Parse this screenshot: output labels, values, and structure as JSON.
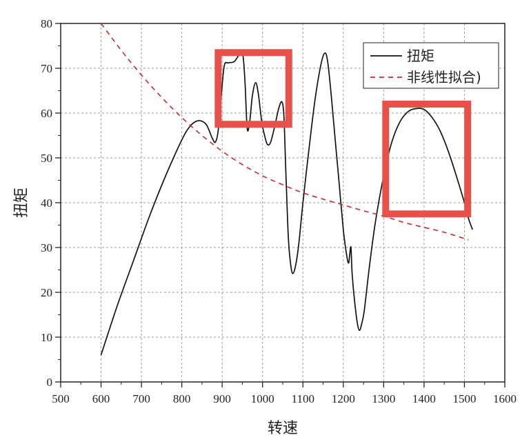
{
  "chart_data": {
    "type": "line",
    "xlabel": "转速",
    "ylabel": "扭矩",
    "xlim": [
      500,
      1600
    ],
    "ylim": [
      0,
      80
    ],
    "xticks": [
      500,
      600,
      700,
      800,
      900,
      1000,
      1100,
      1200,
      1300,
      1400,
      1500,
      1600
    ],
    "yticks": [
      0,
      10,
      20,
      30,
      40,
      50,
      60,
      70,
      80
    ],
    "grid": true,
    "legend_position": "top-right",
    "series": [
      {
        "name": "扭矩",
        "style": "solid",
        "color": "#111111",
        "points": [
          [
            600,
            6
          ],
          [
            640,
            17
          ],
          [
            680,
            27
          ],
          [
            720,
            37
          ],
          [
            760,
            46
          ],
          [
            800,
            54
          ],
          [
            820,
            57
          ],
          [
            840,
            58.3
          ],
          [
            860,
            57.5
          ],
          [
            875,
            54.5
          ],
          [
            883,
            53.5
          ],
          [
            890,
            56
          ],
          [
            897,
            63
          ],
          [
            905,
            70.5
          ],
          [
            915,
            71.2
          ],
          [
            930,
            71.5
          ],
          [
            945,
            73.3
          ],
          [
            952,
            72.5
          ],
          [
            957,
            66
          ],
          [
            962,
            56.5
          ],
          [
            968,
            58
          ],
          [
            975,
            64
          ],
          [
            983,
            66.8
          ],
          [
            990,
            64
          ],
          [
            998,
            58
          ],
          [
            1005,
            55
          ],
          [
            1012,
            53
          ],
          [
            1020,
            53.5
          ],
          [
            1030,
            57
          ],
          [
            1040,
            61
          ],
          [
            1048,
            62.5
          ],
          [
            1053,
            59
          ],
          [
            1058,
            46
          ],
          [
            1064,
            32
          ],
          [
            1070,
            26
          ],
          [
            1075,
            24.2
          ],
          [
            1082,
            26
          ],
          [
            1090,
            31
          ],
          [
            1100,
            40
          ],
          [
            1115,
            52
          ],
          [
            1130,
            63
          ],
          [
            1145,
            71
          ],
          [
            1155,
            73.4
          ],
          [
            1162,
            71
          ],
          [
            1170,
            64
          ],
          [
            1180,
            54
          ],
          [
            1190,
            44
          ],
          [
            1200,
            34
          ],
          [
            1208,
            28.5
          ],
          [
            1213,
            26.5
          ],
          [
            1216,
            28.5
          ],
          [
            1219,
            30
          ],
          [
            1222,
            24
          ],
          [
            1228,
            18
          ],
          [
            1235,
            13
          ],
          [
            1240,
            11.5
          ],
          [
            1245,
            12.8
          ],
          [
            1252,
            16
          ],
          [
            1265,
            26
          ],
          [
            1280,
            36
          ],
          [
            1300,
            46
          ],
          [
            1320,
            53.5
          ],
          [
            1340,
            58
          ],
          [
            1360,
            60.3
          ],
          [
            1380,
            61
          ],
          [
            1400,
            60.8
          ],
          [
            1420,
            59
          ],
          [
            1440,
            56
          ],
          [
            1460,
            51.5
          ],
          [
            1480,
            46
          ],
          [
            1500,
            40
          ],
          [
            1510,
            36.5
          ],
          [
            1520,
            34
          ]
        ]
      },
      {
        "name": "非线性拟合)",
        "style": "dashed",
        "color": "#c8282c",
        "points": [
          [
            600,
            80
          ],
          [
            650,
            74
          ],
          [
            700,
            68.5
          ],
          [
            750,
            63.5
          ],
          [
            800,
            59
          ],
          [
            850,
            55
          ],
          [
            900,
            51.5
          ],
          [
            950,
            48.5
          ],
          [
            1000,
            46
          ],
          [
            1050,
            44
          ],
          [
            1100,
            42.2
          ],
          [
            1150,
            40.8
          ],
          [
            1200,
            39.5
          ],
          [
            1250,
            38.2
          ],
          [
            1300,
            37
          ],
          [
            1350,
            35.6
          ],
          [
            1400,
            34.5
          ],
          [
            1450,
            33.4
          ],
          [
            1500,
            32
          ],
          [
            1510,
            31.7
          ]
        ]
      }
    ],
    "highlight_boxes": [
      {
        "x": [
          890,
          1065
        ],
        "y": [
          57.5,
          73.5
        ],
        "color": "#e8504a"
      },
      {
        "x": [
          1305,
          1508
        ],
        "y": [
          37.5,
          62
        ],
        "color": "#e8504a"
      }
    ]
  }
}
